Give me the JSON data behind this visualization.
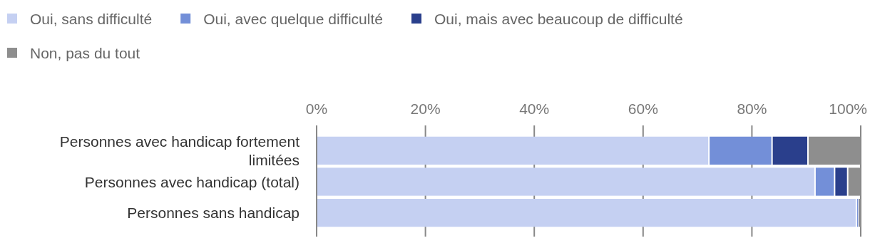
{
  "chart_data": {
    "type": "bar",
    "orientation": "horizontal",
    "stacked": true,
    "categories": [
      "Personnes avec handicap fortement limitées",
      "Personnes avec handicap (total)",
      "Personnes sans handicap"
    ],
    "series": [
      {
        "name": "Oui, sans difficulté",
        "color": "#c5d0f2",
        "values": [
          72.1,
          91.6,
          99.2
        ]
      },
      {
        "name": "Oui, avec quelque difficulté",
        "color": "#738fd8",
        "values": [
          11.6,
          3.6,
          0.4
        ]
      },
      {
        "name": "Oui, mais avec beaucoup de difficulté",
        "color": "#2a3f8c",
        "values": [
          6.6,
          2.4,
          0.1
        ]
      },
      {
        "name": "Non, pas du tout",
        "color": "#8e8e8e",
        "values": [
          9.7,
          2.4,
          0.3
        ]
      }
    ],
    "xlim": [
      0,
      100
    ],
    "xticks": [
      {
        "value": 0,
        "label": "0%"
      },
      {
        "value": 20,
        "label": "20%"
      },
      {
        "value": 40,
        "label": "40%"
      },
      {
        "value": 60,
        "label": "60%"
      },
      {
        "value": 80,
        "label": "80%"
      },
      {
        "value": 100,
        "label": "100%"
      }
    ],
    "grid": "x",
    "legend": "top"
  }
}
